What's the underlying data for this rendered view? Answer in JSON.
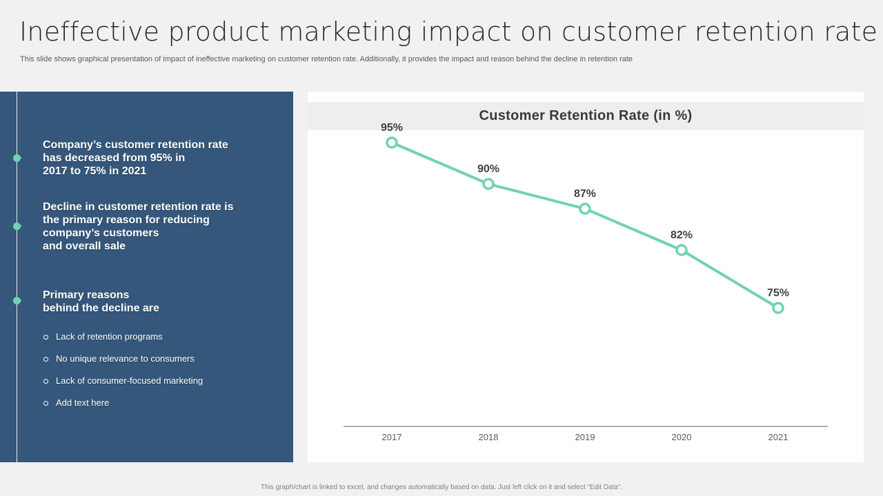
{
  "slide": {
    "title": "Ineffective product marketing impact on customer retention rate",
    "subtitle": "This slide shows graphical presentation of impact of ineffective marketing on customer retention rate. Additionally, it provides the impact and reason behind the decline in retention rate"
  },
  "left_panel": {
    "points": [
      "Company’s customer retention rate\nhas decreased from 95% in\n2017 to 75% in 2021",
      "Decline in customer retention rate is\nthe primary reason for reducing\ncompany’s customers\nand overall sale",
      "Primary reasons\nbehind the decline are"
    ],
    "reasons": [
      "Lack of retention programs",
      "No unique relevance  to consumers",
      "Lack of consumer-focused  marketing",
      "Add text here"
    ]
  },
  "footer": "This graph/chart is linked to excel, and changes automatically based on data. Just left click on it and select “Edit Data”.",
  "colors": {
    "panel": "#34577b",
    "accent": "#72d2b0",
    "line": "#72d2b0"
  },
  "chart_data": {
    "type": "line",
    "title": "Customer Retention Rate (in %)",
    "categories": [
      "2017",
      "2018",
      "2019",
      "2020",
      "2021"
    ],
    "series": [
      {
        "values": [
          95,
          90,
          87,
          82,
          75
        ]
      }
    ],
    "data_labels": [
      "95%",
      "90%",
      "87%",
      "82%",
      "75%"
    ],
    "ylim": [
      60,
      100
    ],
    "grid": false,
    "legend": "none"
  }
}
